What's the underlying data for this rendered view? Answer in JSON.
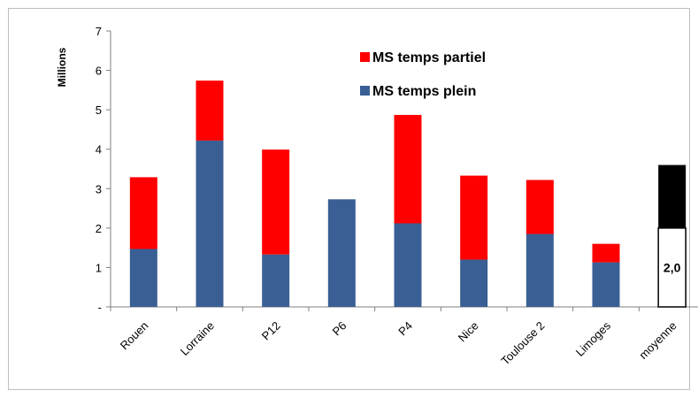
{
  "chart_data": {
    "type": "bar",
    "stacked": true,
    "categories": [
      "Rouen",
      "Lorraine",
      "P12",
      "P6",
      "P4",
      "Nice",
      "Toulouse 2",
      "Limoges",
      "moyenne"
    ],
    "series": [
      {
        "name": "MS temps plein",
        "color": "#3a5f94",
        "values": [
          1.47,
          4.22,
          1.33,
          2.73,
          2.12,
          1.2,
          1.85,
          1.13,
          null
        ]
      },
      {
        "name": "MS temps partiel",
        "color": "#ff0000",
        "values": [
          1.82,
          1.52,
          2.66,
          0,
          2.75,
          2.13,
          1.37,
          0.47,
          null
        ]
      }
    ],
    "average": {
      "category": "moyenne",
      "lower_value": 2.0,
      "upper_value": 1.6,
      "lower_color": "#ffffff",
      "upper_color": "#000000",
      "label": "2,0"
    },
    "ylabel": "Millions",
    "ylim": [
      0,
      7
    ],
    "yticks": [
      0,
      1,
      2,
      3,
      4,
      5,
      6,
      7
    ],
    "ytick_labels": [
      "-",
      "1",
      "2",
      "3",
      "4",
      "5",
      "6",
      "7"
    ],
    "legend": {
      "placement": "top-center",
      "entries": [
        "MS temps partiel",
        "MS temps plein"
      ]
    },
    "grid": false
  }
}
